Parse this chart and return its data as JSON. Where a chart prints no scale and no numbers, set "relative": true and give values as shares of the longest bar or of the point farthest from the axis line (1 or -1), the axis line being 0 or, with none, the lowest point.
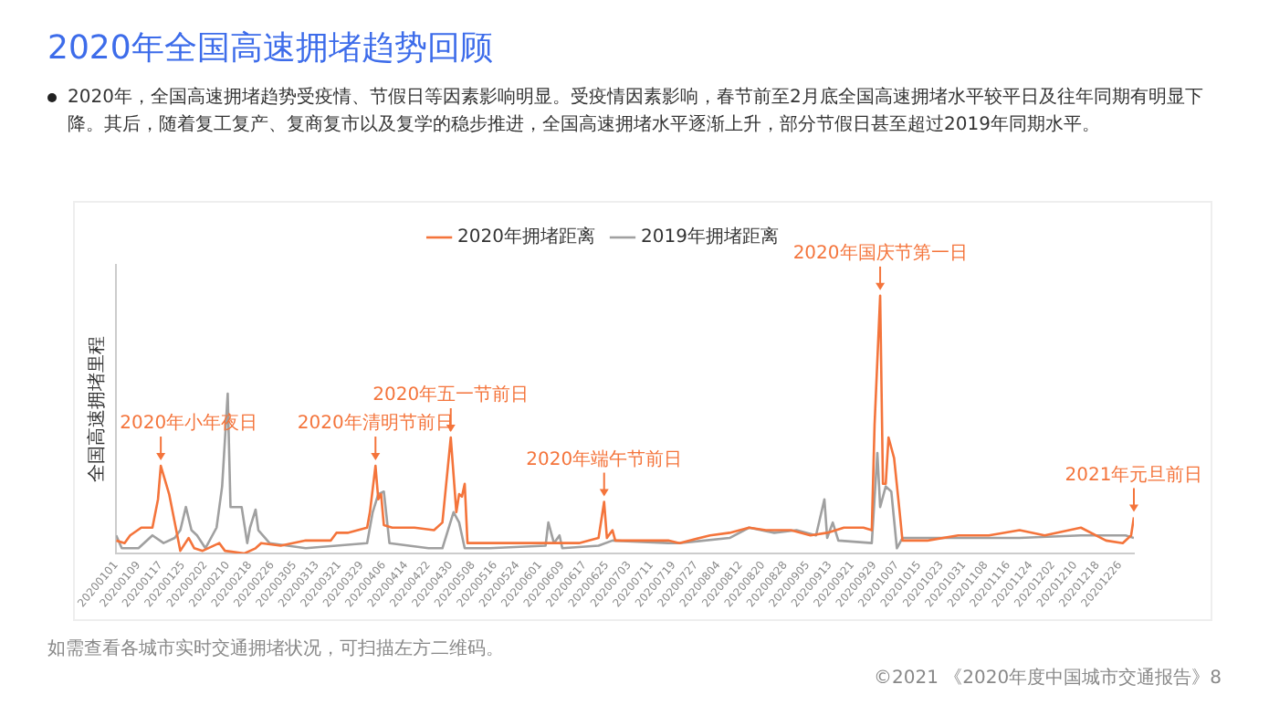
{
  "chart_data": {
    "type": "line",
    "title": "2020年全国高速拥堵趋势回顾",
    "subtitle": "2020年，全国高速拥堵趋势受疫情、节假日等因素影响明显。受疫情因素影响，春节前至2月底全国高速拥堵水平较平日及往年同期有明显下降。其后，随着复工复产、复商复市以及复学的稳步推进，全国高速拥堵水平逐渐上升，部分节假日甚至超过2019年同期水平。",
    "ylabel": "全国高速拥堵里程",
    "relative": true,
    "legend": "top",
    "line_style": "solid",
    "xlim": [
      "2020-01-01",
      "2020-12-31"
    ],
    "xticks": [
      {
        "value": "2020-01-01",
        "label": "20200101"
      },
      {
        "value": "2020-01-09",
        "label": "20200109"
      },
      {
        "value": "2020-01-17",
        "label": "20200117"
      },
      {
        "value": "2020-01-25",
        "label": "20200125"
      },
      {
        "value": "2020-02-02",
        "label": "20200202"
      },
      {
        "value": "2020-02-10",
        "label": "20200210"
      },
      {
        "value": "2020-02-18",
        "label": "20200218"
      },
      {
        "value": "2020-02-26",
        "label": "20200226"
      },
      {
        "value": "2020-03-05",
        "label": "20200305"
      },
      {
        "value": "2020-03-13",
        "label": "20200313"
      },
      {
        "value": "2020-03-21",
        "label": "20200321"
      },
      {
        "value": "2020-03-29",
        "label": "20200329"
      },
      {
        "value": "2020-04-06",
        "label": "20200406"
      },
      {
        "value": "2020-04-14",
        "label": "20200414"
      },
      {
        "value": "2020-04-22",
        "label": "20200422"
      },
      {
        "value": "2020-04-30",
        "label": "20200430"
      },
      {
        "value": "2020-05-08",
        "label": "20200508"
      },
      {
        "value": "2020-05-16",
        "label": "20200516"
      },
      {
        "value": "2020-05-24",
        "label": "20200524"
      },
      {
        "value": "2020-06-01",
        "label": "20200601"
      },
      {
        "value": "2020-06-09",
        "label": "20200609"
      },
      {
        "value": "2020-06-17",
        "label": "20200617"
      },
      {
        "value": "2020-06-25",
        "label": "20200625"
      },
      {
        "value": "2020-07-03",
        "label": "20200703"
      },
      {
        "value": "2020-07-11",
        "label": "20200711"
      },
      {
        "value": "2020-07-19",
        "label": "20200719"
      },
      {
        "value": "2020-07-27",
        "label": "20200727"
      },
      {
        "value": "2020-08-04",
        "label": "20200804"
      },
      {
        "value": "2020-08-12",
        "label": "20200812"
      },
      {
        "value": "2020-08-20",
        "label": "20200820"
      },
      {
        "value": "2020-08-28",
        "label": "20200828"
      },
      {
        "value": "2020-09-05",
        "label": "20200905"
      },
      {
        "value": "2020-09-13",
        "label": "20200913"
      },
      {
        "value": "2020-09-21",
        "label": "20200921"
      },
      {
        "value": "2020-09-29",
        "label": "20200929"
      },
      {
        "value": "2020-10-07",
        "label": "20201007"
      },
      {
        "value": "2020-10-15",
        "label": "20201015"
      },
      {
        "value": "2020-10-23",
        "label": "20201023"
      },
      {
        "value": "2020-10-31",
        "label": "20201031"
      },
      {
        "value": "2020-11-08",
        "label": "20201108"
      },
      {
        "value": "2020-11-16",
        "label": "20201116"
      },
      {
        "value": "2020-11-24",
        "label": "20201124"
      },
      {
        "value": "2020-12-02",
        "label": "20201202"
      },
      {
        "value": "2020-12-10",
        "label": "20201210"
      },
      {
        "value": "2020-12-18",
        "label": "20201218"
      },
      {
        "value": "2020-12-26",
        "label": "20201226"
      }
    ],
    "series": [
      {
        "name": "2020年拥堵距离",
        "color": "#f4743b",
        "x": [
          "2020-01-01",
          "2020-01-04",
          "2020-01-06",
          "2020-01-10",
          "2020-01-14",
          "2020-01-16",
          "2020-01-17",
          "2020-01-20",
          "2020-01-22",
          "2020-01-24",
          "2020-01-27",
          "2020-01-29",
          "2020-02-01",
          "2020-02-07",
          "2020-02-09",
          "2020-02-16",
          "2020-02-20",
          "2020-02-22",
          "2020-02-29",
          "2020-03-09",
          "2020-03-18",
          "2020-03-20",
          "2020-03-24",
          "2020-03-31",
          "2020-04-01",
          "2020-04-03",
          "2020-04-04",
          "2020-04-05",
          "2020-04-06",
          "2020-04-09",
          "2020-04-17",
          "2020-04-24",
          "2020-04-27",
          "2020-04-30",
          "2020-05-02",
          "2020-05-03",
          "2020-05-04",
          "2020-05-05",
          "2020-05-06",
          "2020-05-14",
          "2020-05-27",
          "2020-06-04",
          "2020-06-15",
          "2020-06-22",
          "2020-06-24",
          "2020-06-25",
          "2020-06-27",
          "2020-06-28",
          "2020-07-08",
          "2020-07-17",
          "2020-07-21",
          "2020-08-01",
          "2020-08-08",
          "2020-08-15",
          "2020-08-21",
          "2020-08-30",
          "2020-09-06",
          "2020-09-12",
          "2020-09-18",
          "2020-09-25",
          "2020-09-28",
          "2020-09-29",
          "2020-10-01",
          "2020-10-02",
          "2020-10-03",
          "2020-10-04",
          "2020-10-06",
          "2020-10-08",
          "2020-10-09",
          "2020-10-18",
          "2020-10-29",
          "2020-11-09",
          "2020-11-20",
          "2020-11-29",
          "2020-12-12",
          "2020-12-21",
          "2020-12-27",
          "2020-12-30",
          "2020-12-31"
        ],
        "values": [
          0.05,
          0.04,
          0.07,
          0.1,
          0.1,
          0.21,
          0.34,
          0.23,
          0.12,
          0.01,
          0.06,
          0.02,
          0.01,
          0.04,
          0.01,
          0.0,
          0.02,
          0.04,
          0.03,
          0.05,
          0.05,
          0.08,
          0.08,
          0.1,
          0.16,
          0.34,
          0.21,
          0.23,
          0.11,
          0.1,
          0.1,
          0.09,
          0.12,
          0.45,
          0.16,
          0.23,
          0.22,
          0.27,
          0.04,
          0.04,
          0.04,
          0.04,
          0.04,
          0.06,
          0.2,
          0.06,
          0.09,
          0.05,
          0.05,
          0.05,
          0.04,
          0.07,
          0.08,
          0.1,
          0.09,
          0.09,
          0.07,
          0.08,
          0.1,
          0.1,
          0.09,
          0.5,
          1.0,
          0.27,
          0.27,
          0.45,
          0.37,
          0.16,
          0.05,
          0.05,
          0.07,
          0.07,
          0.09,
          0.07,
          0.1,
          0.05,
          0.04,
          0.07,
          0.14
        ]
      },
      {
        "name": "2019年拥堵距离",
        "color": "#a0a0a0",
        "x": [
          "2020-01-01",
          "2020-01-03",
          "2020-01-09",
          "2020-01-14",
          "2020-01-18",
          "2020-01-22",
          "2020-01-24",
          "2020-01-26",
          "2020-01-28",
          "2020-01-30",
          "2020-02-02",
          "2020-02-06",
          "2020-02-08",
          "2020-02-10",
          "2020-02-11",
          "2020-02-15",
          "2020-02-17",
          "2020-02-18",
          "2020-02-20",
          "2020-02-21",
          "2020-02-25",
          "2020-03-09",
          "2020-03-31",
          "2020-04-02",
          "2020-04-04",
          "2020-04-06",
          "2020-04-08",
          "2020-04-22",
          "2020-04-27",
          "2020-05-01",
          "2020-05-03",
          "2020-05-05",
          "2020-05-14",
          "2020-06-03",
          "2020-06-04",
          "2020-06-06",
          "2020-06-08",
          "2020-06-09",
          "2020-06-22",
          "2020-06-27",
          "2020-07-17",
          "2020-07-21",
          "2020-08-08",
          "2020-08-15",
          "2020-08-24",
          "2020-09-01",
          "2020-09-08",
          "2020-09-11",
          "2020-09-12",
          "2020-09-14",
          "2020-09-16",
          "2020-09-28",
          "2020-09-30",
          "2020-10-01",
          "2020-10-03",
          "2020-10-05",
          "2020-10-07",
          "2020-10-09",
          "2020-10-29",
          "2020-11-20",
          "2020-12-12",
          "2020-12-28",
          "2020-12-31"
        ],
        "values": [
          0.07,
          0.02,
          0.02,
          0.07,
          0.04,
          0.06,
          0.09,
          0.18,
          0.09,
          0.07,
          0.02,
          0.1,
          0.26,
          0.62,
          0.18,
          0.18,
          0.04,
          0.1,
          0.17,
          0.09,
          0.04,
          0.02,
          0.04,
          0.16,
          0.23,
          0.24,
          0.04,
          0.02,
          0.02,
          0.16,
          0.12,
          0.02,
          0.02,
          0.03,
          0.12,
          0.04,
          0.07,
          0.02,
          0.03,
          0.05,
          0.04,
          0.04,
          0.06,
          0.1,
          0.08,
          0.09,
          0.07,
          0.21,
          0.06,
          0.12,
          0.05,
          0.04,
          0.39,
          0.18,
          0.26,
          0.24,
          0.02,
          0.06,
          0.06,
          0.06,
          0.07,
          0.07,
          0.06
        ]
      }
    ],
    "annotations": [
      {
        "text": "2020年小年夜日",
        "x": "2020-01-17",
        "y": 0.34
      },
      {
        "text": "2020年清明节前日",
        "x": "2020-04-03",
        "y": 0.34
      },
      {
        "text": "2020年五一节前日",
        "x": "2020-04-30",
        "y": 0.45
      },
      {
        "text": "2020年端午节前日",
        "x": "2020-06-24",
        "y": 0.2
      },
      {
        "text": "2020年国庆节第一日",
        "x": "2020-10-01",
        "y": 1.0
      },
      {
        "text": "2021年元旦前日",
        "x": "2020-12-31",
        "y": 0.14
      },
      "如需查看各城市实时交通拥堵状况，可扫描左方二维码。",
      "©2021 《2020年度中国城市交通报告》8"
    ]
  }
}
